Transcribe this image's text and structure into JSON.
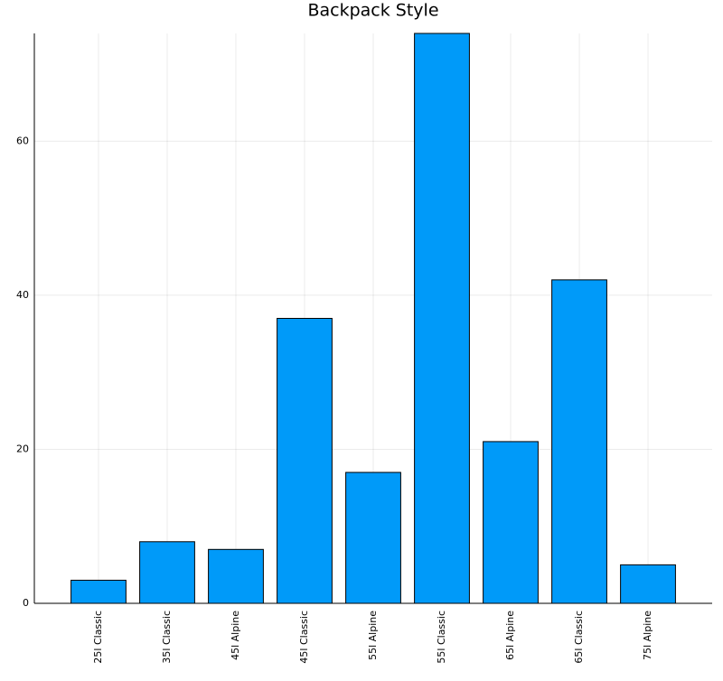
{
  "chart_data": {
    "type": "bar",
    "title": "Backpack Style",
    "categories": [
      "25l Classic",
      "35l Classic",
      "45l Alpine",
      "45l Classic",
      "55l Alpine",
      "55l Classic",
      "65l Alpine",
      "65l Classic",
      "75l Alpine"
    ],
    "values": [
      3,
      8,
      7,
      37,
      17,
      74,
      21,
      42,
      5
    ],
    "color": "#009af9",
    "ylim": [
      0,
      74
    ],
    "yticks": [
      0,
      20,
      40,
      60
    ],
    "grid": true
  }
}
